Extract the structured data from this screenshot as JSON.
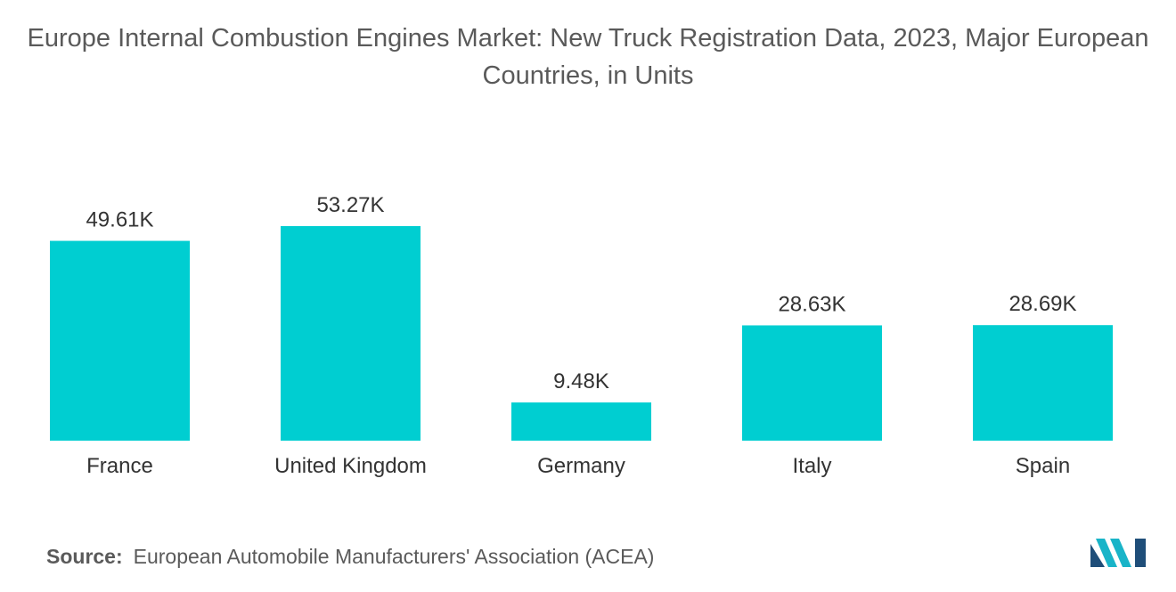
{
  "title": "Europe Internal Combustion Engines Market: New Truck Registration Data, 2023, Major European Countries, in Units",
  "source_label": "Source:",
  "source_text": "European Automobile Manufacturers' Association (ACEA)",
  "colors": {
    "bar": "#00ced1",
    "logo_dark": "#1f4e79",
    "logo_light": "#19b4c8"
  },
  "chart_data": {
    "type": "bar",
    "title": "Europe Internal Combustion Engines Market: New Truck Registration Data, 2023, Major European Countries, in Units",
    "categories": [
      "France",
      "United Kingdom",
      "Germany",
      "Italy",
      "Spain"
    ],
    "values": [
      49610,
      53270,
      9480,
      28630,
      28690
    ],
    "value_labels": [
      "49.61K",
      "53.27K",
      "9.48K",
      "28.63K",
      "28.69K"
    ],
    "xlabel": "",
    "ylabel": "",
    "ylim": [
      0,
      53270
    ],
    "grid": false,
    "legend": "none"
  }
}
